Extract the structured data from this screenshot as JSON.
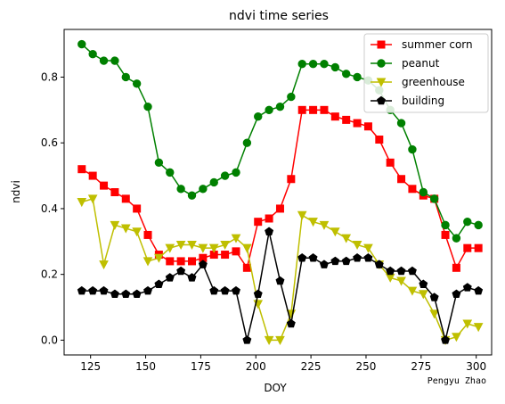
{
  "chart_data": {
    "type": "line",
    "title": "ndvi time series",
    "xlabel": "DOY",
    "ylabel": "ndvi",
    "credit": "Pengyu  Zhao",
    "xlim": [
      113,
      307
    ],
    "ylim": [
      -0.045,
      0.945
    ],
    "xticks": [
      125,
      150,
      175,
      200,
      225,
      250,
      275,
      300
    ],
    "yticks": [
      0.0,
      0.2,
      0.4,
      0.6,
      0.8
    ],
    "ytick_labels": [
      "0.0",
      "0.2",
      "0.4",
      "0.6",
      "0.8"
    ],
    "grid": false,
    "legend_position": "top-right",
    "x": [
      121,
      126,
      131,
      136,
      141,
      146,
      151,
      156,
      161,
      166,
      171,
      176,
      181,
      186,
      191,
      196,
      201,
      206,
      211,
      216,
      221,
      226,
      231,
      236,
      241,
      246,
      251,
      256,
      261,
      266,
      271,
      276,
      281,
      286,
      291,
      296,
      301
    ],
    "series": [
      {
        "name": "summer corn",
        "color": "#ff0000",
        "marker": "square",
        "values": [
          0.52,
          0.5,
          0.47,
          0.45,
          0.43,
          0.4,
          0.32,
          0.26,
          0.24,
          0.24,
          0.24,
          0.25,
          0.26,
          0.26,
          0.27,
          0.22,
          0.36,
          0.37,
          0.4,
          0.49,
          0.7,
          0.7,
          0.7,
          0.68,
          0.67,
          0.66,
          0.65,
          0.61,
          0.54,
          0.49,
          0.46,
          0.44,
          0.43,
          0.32,
          0.22,
          0.28,
          0.28
        ]
      },
      {
        "name": "peanut",
        "color": "#008000",
        "marker": "circle",
        "values": [
          0.9,
          0.87,
          0.85,
          0.85,
          0.8,
          0.78,
          0.71,
          0.54,
          0.51,
          0.46,
          0.44,
          0.46,
          0.48,
          0.5,
          0.51,
          0.6,
          0.68,
          0.7,
          0.71,
          0.74,
          0.84,
          0.84,
          0.84,
          0.83,
          0.81,
          0.8,
          0.79,
          0.76,
          0.7,
          0.66,
          0.58,
          0.45,
          0.43,
          0.35,
          0.31,
          0.36,
          0.35
        ]
      },
      {
        "name": "greenhouse",
        "color": "#bfbf00",
        "marker": "triangle-down",
        "values": [
          0.42,
          0.43,
          0.23,
          0.35,
          0.34,
          0.33,
          0.24,
          0.25,
          0.28,
          0.29,
          0.29,
          0.28,
          0.28,
          0.29,
          0.31,
          0.28,
          0.11,
          0.0,
          0.0,
          0.08,
          0.38,
          0.36,
          0.35,
          0.33,
          0.31,
          0.29,
          0.28,
          0.23,
          0.19,
          0.18,
          0.15,
          0.14,
          0.08,
          0.0,
          0.01,
          0.05,
          0.04
        ]
      },
      {
        "name": "building",
        "color": "#000000",
        "marker": "pentagon",
        "values": [
          0.15,
          0.15,
          0.15,
          0.14,
          0.14,
          0.14,
          0.15,
          0.17,
          0.19,
          0.21,
          0.19,
          0.23,
          0.15,
          0.15,
          0.15,
          0.0,
          0.14,
          0.33,
          0.18,
          0.05,
          0.25,
          0.25,
          0.23,
          0.24,
          0.24,
          0.25,
          0.25,
          0.23,
          0.21,
          0.21,
          0.21,
          0.17,
          0.13,
          0.0,
          0.14,
          0.16,
          0.15
        ]
      }
    ]
  }
}
